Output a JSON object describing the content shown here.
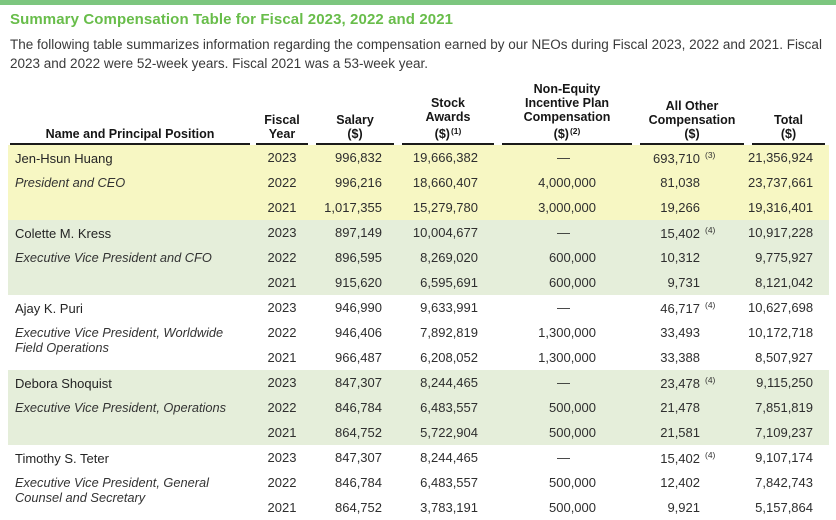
{
  "page": {
    "title": "Summary Compensation Table for Fiscal 2023, 2022 and 2021",
    "intro": "The following table summarizes information regarding the compensation earned by our NEOs during Fiscal 2023, 2022 and 2021.  Fiscal 2023 and 2022 were 52-week years. Fiscal 2021 was a 53-week year.",
    "accent_title_green": "#68bd4a",
    "top_bar_green": "#7cc67f",
    "row_shade_yellow": "#f7f7c3",
    "row_shade_green": "#e5eeda"
  },
  "table": {
    "headers": [
      {
        "lines": [
          "Name and Principal Position"
        ]
      },
      {
        "lines": [
          "Fiscal",
          "Year"
        ]
      },
      {
        "lines": [
          "Salary",
          "($)"
        ]
      },
      {
        "lines": [
          "Stock",
          "Awards",
          "($)"
        ],
        "sup": "(1)"
      },
      {
        "lines": [
          "Non-Equity",
          "Incentive Plan",
          "Compensation",
          "($)"
        ],
        "sup": "(2)"
      },
      {
        "lines": [
          "All Other",
          "Compensation",
          "($)"
        ]
      },
      {
        "lines": [
          "Total",
          "($)"
        ]
      }
    ],
    "groups": [
      {
        "name": "Jen-Hsun Huang",
        "position": "President and CEO",
        "shade": "yellow",
        "rows": [
          {
            "year": "2023",
            "salary": "996,832",
            "stock": "19,666,382",
            "non_equity": "—",
            "all_other": "693,710",
            "all_other_note": "(3)",
            "total": "21,356,924"
          },
          {
            "year": "2022",
            "salary": "996,216",
            "stock": "18,660,407",
            "non_equity": "4,000,000",
            "all_other": "81,038",
            "total": "23,737,661"
          },
          {
            "year": "2021",
            "salary": "1,017,355",
            "stock": "15,279,780",
            "non_equity": "3,000,000",
            "all_other": "19,266",
            "total": "19,316,401"
          }
        ]
      },
      {
        "name": "Colette M. Kress",
        "position": "Executive Vice President and CFO",
        "shade": "green",
        "rows": [
          {
            "year": "2023",
            "salary": "897,149",
            "stock": "10,004,677",
            "non_equity": "—",
            "all_other": "15,402",
            "all_other_note": "(4)",
            "total": "10,917,228"
          },
          {
            "year": "2022",
            "salary": "896,595",
            "stock": "8,269,020",
            "non_equity": "600,000",
            "all_other": "10,312",
            "total": "9,775,927"
          },
          {
            "year": "2021",
            "salary": "915,620",
            "stock": "6,595,691",
            "non_equity": "600,000",
            "all_other": "9,731",
            "total": "8,121,042"
          }
        ]
      },
      {
        "name": "Ajay K. Puri",
        "position": "Executive Vice President, Worldwide Field Operations",
        "shade": "white",
        "rows": [
          {
            "year": "2023",
            "salary": "946,990",
            "stock": "9,633,991",
            "non_equity": "—",
            "all_other": "46,717",
            "all_other_note": "(4)",
            "total": "10,627,698"
          },
          {
            "year": "2022",
            "salary": "946,406",
            "stock": "7,892,819",
            "non_equity": "1,300,000",
            "all_other": "33,493",
            "total": "10,172,718"
          },
          {
            "year": "2021",
            "salary": "966,487",
            "stock": "6,208,052",
            "non_equity": "1,300,000",
            "all_other": "33,388",
            "total": "8,507,927"
          }
        ]
      },
      {
        "name": "Debora Shoquist",
        "position": "Executive Vice President, Operations",
        "shade": "green",
        "rows": [
          {
            "year": "2023",
            "salary": "847,307",
            "stock": "8,244,465",
            "non_equity": "—",
            "all_other": "23,478",
            "all_other_note": "(4)",
            "total": "9,115,250"
          },
          {
            "year": "2022",
            "salary": "846,784",
            "stock": "6,483,557",
            "non_equity": "500,000",
            "all_other": "21,478",
            "total": "7,851,819"
          },
          {
            "year": "2021",
            "salary": "864,752",
            "stock": "5,722,904",
            "non_equity": "500,000",
            "all_other": "21,581",
            "total": "7,109,237"
          }
        ]
      },
      {
        "name": "Timothy S. Teter",
        "position": "Executive Vice President, General Counsel and Secretary",
        "shade": "white",
        "rows": [
          {
            "year": "2023",
            "salary": "847,307",
            "stock": "8,244,465",
            "non_equity": "—",
            "all_other": "15,402",
            "all_other_note": "(4)",
            "total": "9,107,174"
          },
          {
            "year": "2022",
            "salary": "846,784",
            "stock": "6,483,557",
            "non_equity": "500,000",
            "all_other": "12,402",
            "total": "7,842,743"
          },
          {
            "year": "2021",
            "salary": "864,752",
            "stock": "3,783,191",
            "non_equity": "500,000",
            "all_other": "9,921",
            "total": "5,157,864"
          }
        ]
      }
    ]
  }
}
